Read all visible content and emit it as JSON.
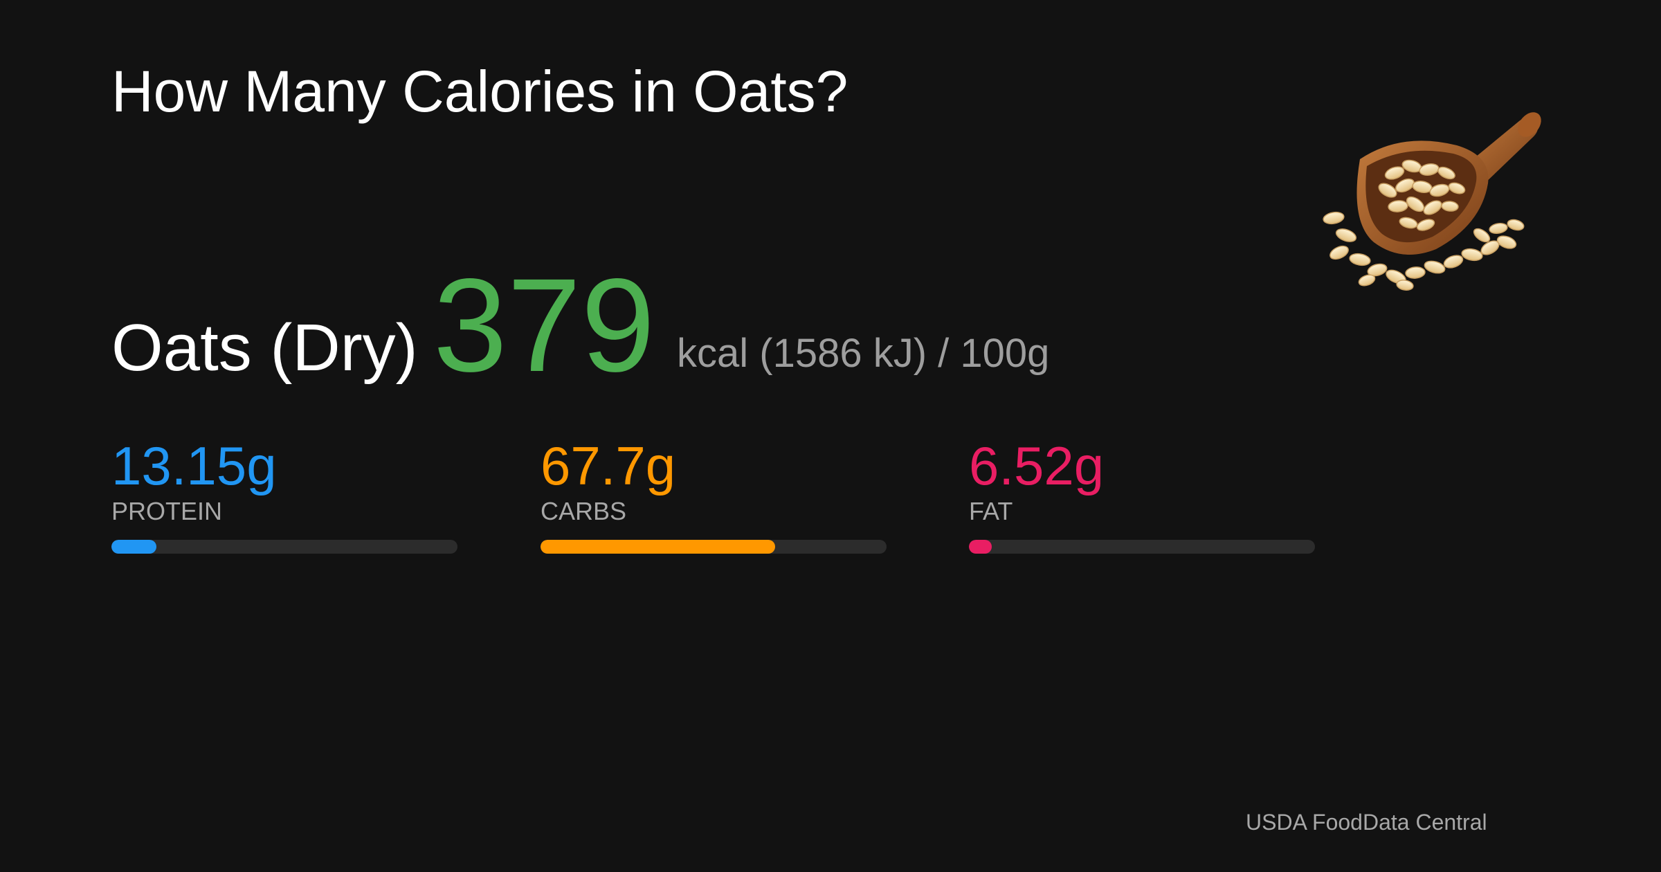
{
  "title": "How Many Calories in Oats?",
  "food": {
    "name": "Oats (Dry)",
    "kcal": "379",
    "unit_text": "kcal (1586 kJ) / 100g"
  },
  "macros": [
    {
      "value": "13.15g",
      "label": "PROTEIN",
      "fill_fraction": 0.13,
      "color": "#2196f3"
    },
    {
      "value": "67.7g",
      "label": "CARBS",
      "fill_fraction": 0.677,
      "color": "#ff9800"
    },
    {
      "value": "6.52g",
      "label": "FAT",
      "fill_fraction": 0.065,
      "color": "#e91e63"
    }
  ],
  "source": "USDA FoodData Central",
  "colors": {
    "background": "#121212",
    "kcal": "#4caf50",
    "bar_track": "#2c2c2c"
  },
  "icons": {
    "illustration": "oat-scoop-icon"
  }
}
